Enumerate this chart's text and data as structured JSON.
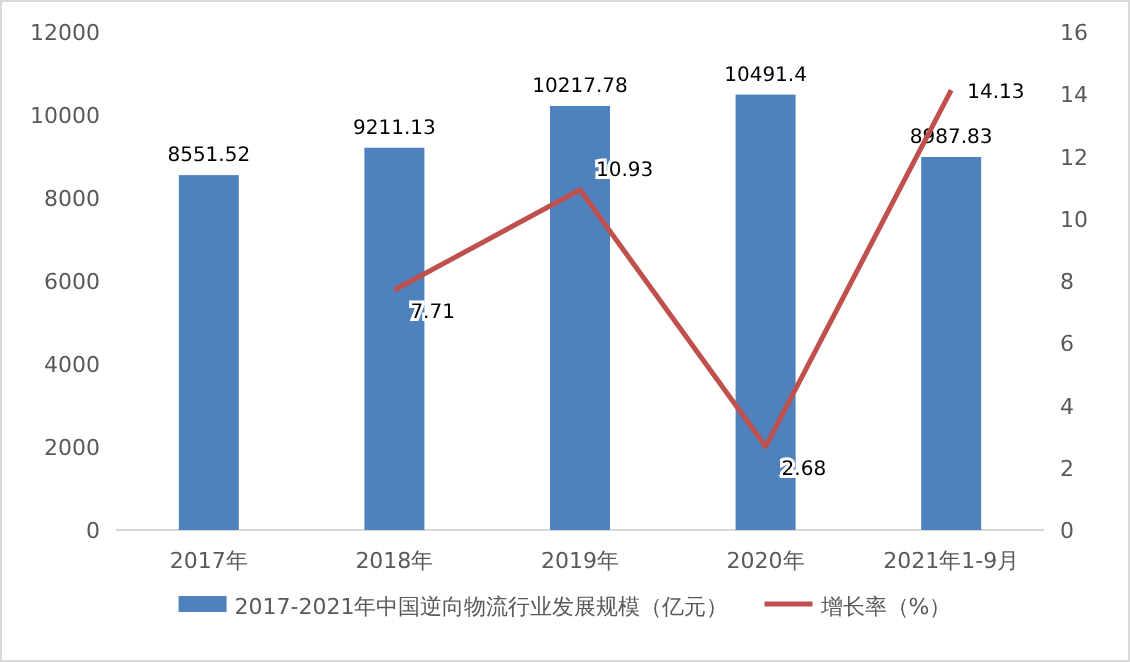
{
  "chart_data": {
    "type": "bar",
    "categories": [
      "2017年",
      "2018年",
      "2019年",
      "2020年",
      "2021年1-9月"
    ],
    "series": [
      {
        "name": "2017-2021年中国逆向物流行业发展规模（亿元）",
        "color": "#4f81bd",
        "values": [
          8551.52,
          9211.13,
          10217.78,
          10491.4,
          8987.83
        ]
      },
      {
        "name": "增长率（%）",
        "type": "line",
        "axis": "y2",
        "color": "#c0504d",
        "values": [
          null,
          7.71,
          10.93,
          2.68,
          14.13
        ]
      }
    ],
    "ylim": [
      0,
      12000
    ],
    "yticks": [
      0,
      2000,
      4000,
      6000,
      8000,
      10000,
      12000
    ],
    "y2lim": [
      0,
      16
    ],
    "y2ticks": [
      0,
      2,
      4,
      6,
      8,
      10,
      12,
      14,
      16
    ],
    "data_labels": true,
    "legend": "bottom",
    "marker": "none"
  }
}
